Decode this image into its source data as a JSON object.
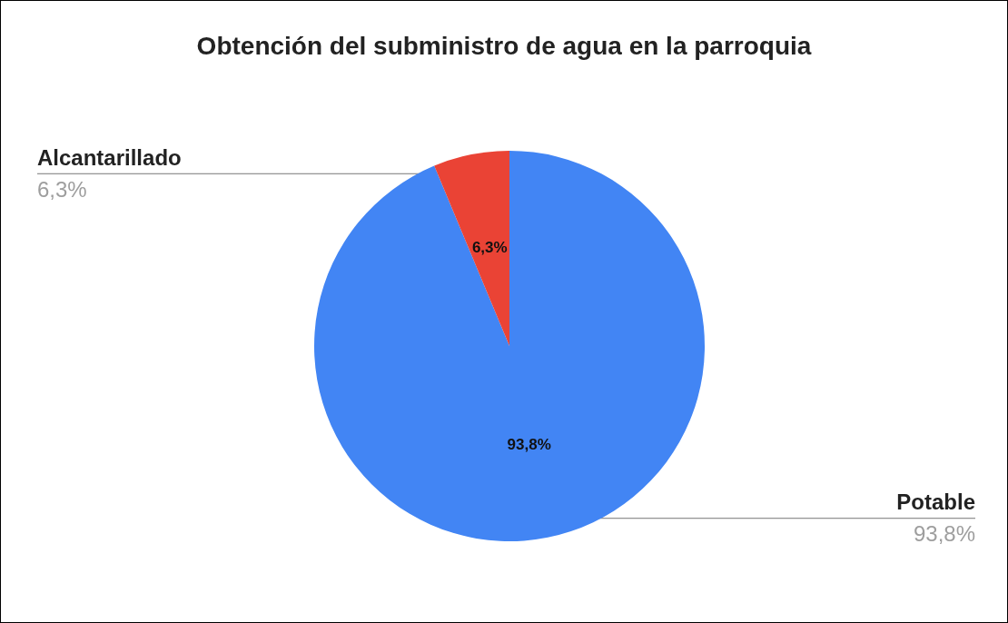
{
  "chart_data": {
    "type": "pie",
    "title": "Obtención del subministro de agua en la parroquia",
    "categories": [
      "Potable",
      "Alcantarillado"
    ],
    "values": [
      93.8,
      6.3
    ],
    "colors": [
      "#4285f4",
      "#ea4335"
    ],
    "value_labels": [
      "93,8%",
      "6,3%"
    ],
    "legend": false
  }
}
